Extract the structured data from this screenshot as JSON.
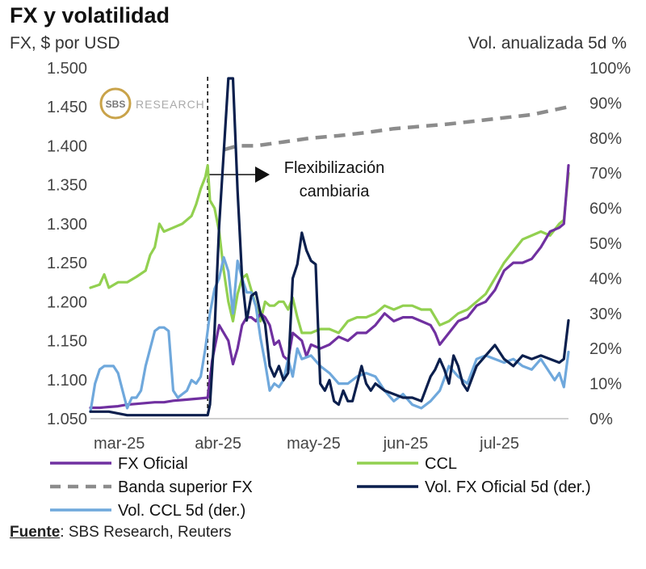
{
  "title": "FX y volatilidad",
  "source_label": "Fuente",
  "source_text": ": SBS Research, Reuters",
  "colors": {
    "fx_oficial": "#7030a0",
    "ccl": "#92d050",
    "banda": "#8c8c8c",
    "vol_fx": "#0b1f4d",
    "vol_ccl": "#6fa8dc",
    "logo_gold": "#c9a34a"
  },
  "logo": {
    "mark": "SBS",
    "text": "RESEARCH"
  },
  "chart_data": {
    "type": "line",
    "title": "FX y volatilidad",
    "ylabel_left": "FX, $ por USD",
    "ylabel_right": "Vol. anualizada 5d %",
    "ylim_left": [
      1050,
      1500
    ],
    "ylim_right": [
      0,
      100
    ],
    "yticks_left": [
      "1.050",
      "1.100",
      "1.150",
      "1.200",
      "1.250",
      "1.300",
      "1.350",
      "1.400",
      "1.450",
      "1.500"
    ],
    "yticks_right": [
      "0%",
      "10%",
      "20%",
      "30%",
      "40%",
      "50%",
      "60%",
      "70%",
      "80%",
      "90%",
      "100%"
    ],
    "x_domain": [
      0,
      104
    ],
    "x_ticks": [
      {
        "label": "mar-25",
        "x": 0
      },
      {
        "label": "abr-25",
        "x": 22
      },
      {
        "label": "may-25",
        "x": 42
      },
      {
        "label": "jun-25",
        "x": 63
      },
      {
        "label": "jul-25",
        "x": 84
      }
    ],
    "event_x": 25.5,
    "annotation": [
      "Flexibilización",
      "cambiaria"
    ],
    "series": [
      {
        "name": "FX Oficial",
        "key": "fx_oficial",
        "axis": "left",
        "dash": false,
        "points": [
          [
            0,
            1064
          ],
          [
            2,
            1064
          ],
          [
            4,
            1065
          ],
          [
            6,
            1066
          ],
          [
            8,
            1068
          ],
          [
            10,
            1069
          ],
          [
            12,
            1070
          ],
          [
            14,
            1071
          ],
          [
            16,
            1071
          ],
          [
            18,
            1073
          ],
          [
            20,
            1074
          ],
          [
            22,
            1075
          ],
          [
            24,
            1076
          ],
          [
            25.5,
            1077
          ],
          [
            26.5,
            1125
          ],
          [
            28,
            1170
          ],
          [
            29,
            1160
          ],
          [
            30,
            1150
          ],
          [
            31,
            1120
          ],
          [
            32,
            1140
          ],
          [
            33,
            1170
          ],
          [
            34,
            1180
          ],
          [
            35,
            1180
          ],
          [
            36,
            1175
          ],
          [
            37,
            1185
          ],
          [
            38,
            1180
          ],
          [
            39,
            1170
          ],
          [
            40,
            1145
          ],
          [
            41,
            1150
          ],
          [
            42,
            1130
          ],
          [
            43,
            1125
          ],
          [
            44,
            1160
          ],
          [
            45,
            1155
          ],
          [
            46,
            1150
          ],
          [
            47,
            1130
          ],
          [
            48,
            1145
          ],
          [
            50,
            1140
          ],
          [
            52,
            1145
          ],
          [
            54,
            1155
          ],
          [
            56,
            1150
          ],
          [
            58,
            1160
          ],
          [
            60,
            1160
          ],
          [
            62,
            1170
          ],
          [
            64,
            1185
          ],
          [
            66,
            1175
          ],
          [
            68,
            1180
          ],
          [
            70,
            1180
          ],
          [
            72,
            1175
          ],
          [
            74,
            1170
          ],
          [
            75,
            1160
          ],
          [
            76,
            1145
          ],
          [
            78,
            1160
          ],
          [
            80,
            1175
          ],
          [
            82,
            1180
          ],
          [
            84,
            1195
          ],
          [
            86,
            1200
          ],
          [
            88,
            1215
          ],
          [
            90,
            1240
          ],
          [
            92,
            1250
          ],
          [
            94,
            1250
          ],
          [
            96,
            1255
          ],
          [
            98,
            1270
          ],
          [
            100,
            1290
          ],
          [
            102,
            1295
          ],
          [
            103,
            1300
          ],
          [
            104,
            1375
          ]
        ]
      },
      {
        "name": "CCL",
        "key": "ccl",
        "axis": "left",
        "dash": false,
        "points": [
          [
            0,
            1218
          ],
          [
            2,
            1222
          ],
          [
            3,
            1235
          ],
          [
            4,
            1218
          ],
          [
            6,
            1225
          ],
          [
            8,
            1225
          ],
          [
            10,
            1232
          ],
          [
            12,
            1240
          ],
          [
            13,
            1260
          ],
          [
            14,
            1270
          ],
          [
            15,
            1300
          ],
          [
            16,
            1290
          ],
          [
            18,
            1295
          ],
          [
            20,
            1300
          ],
          [
            22,
            1310
          ],
          [
            23,
            1325
          ],
          [
            24,
            1345
          ],
          [
            25,
            1360
          ],
          [
            25.5,
            1375
          ],
          [
            26,
            1330
          ],
          [
            27,
            1320
          ],
          [
            28,
            1290
          ],
          [
            29,
            1240
          ],
          [
            30,
            1200
          ],
          [
            31,
            1175
          ],
          [
            32,
            1210
          ],
          [
            33,
            1230
          ],
          [
            34,
            1235
          ],
          [
            35,
            1215
          ],
          [
            36,
            1195
          ],
          [
            37,
            1175
          ],
          [
            38,
            1200
          ],
          [
            39,
            1195
          ],
          [
            40,
            1195
          ],
          [
            41,
            1200
          ],
          [
            42,
            1200
          ],
          [
            43,
            1190
          ],
          [
            44,
            1205
          ],
          [
            45,
            1180
          ],
          [
            46,
            1160
          ],
          [
            48,
            1160
          ],
          [
            50,
            1165
          ],
          [
            52,
            1165
          ],
          [
            54,
            1160
          ],
          [
            56,
            1175
          ],
          [
            58,
            1180
          ],
          [
            60,
            1180
          ],
          [
            62,
            1185
          ],
          [
            64,
            1195
          ],
          [
            66,
            1190
          ],
          [
            68,
            1195
          ],
          [
            70,
            1195
          ],
          [
            72,
            1190
          ],
          [
            74,
            1190
          ],
          [
            75,
            1180
          ],
          [
            76,
            1170
          ],
          [
            78,
            1175
          ],
          [
            80,
            1185
          ],
          [
            82,
            1190
          ],
          [
            84,
            1200
          ],
          [
            86,
            1210
          ],
          [
            88,
            1230
          ],
          [
            90,
            1250
          ],
          [
            92,
            1265
          ],
          [
            94,
            1280
          ],
          [
            96,
            1285
          ],
          [
            98,
            1290
          ],
          [
            100,
            1285
          ],
          [
            102,
            1300
          ],
          [
            103,
            1305
          ],
          [
            104,
            1365
          ]
        ]
      },
      {
        "name": "Banda superior FX",
        "key": "banda",
        "axis": "left",
        "dash": true,
        "points": [
          [
            29,
            1395
          ],
          [
            32,
            1400
          ],
          [
            36,
            1400
          ],
          [
            42,
            1405
          ],
          [
            48,
            1410
          ],
          [
            54,
            1413
          ],
          [
            60,
            1417
          ],
          [
            66,
            1422
          ],
          [
            72,
            1425
          ],
          [
            78,
            1428
          ],
          [
            84,
            1432
          ],
          [
            90,
            1436
          ],
          [
            96,
            1440
          ],
          [
            104,
            1450
          ]
        ]
      },
      {
        "name": "Vol. FX Oficial 5d (der.)",
        "key": "vol_fx",
        "axis": "right",
        "dash": false,
        "points": [
          [
            0,
            2
          ],
          [
            4,
            2
          ],
          [
            8,
            1
          ],
          [
            10,
            1
          ],
          [
            14,
            1
          ],
          [
            18,
            1
          ],
          [
            22,
            1
          ],
          [
            25.5,
            1
          ],
          [
            26,
            4
          ],
          [
            27,
            25
          ],
          [
            28,
            55
          ],
          [
            29,
            76
          ],
          [
            30,
            97
          ],
          [
            31,
            97
          ],
          [
            32,
            65
          ],
          [
            33,
            40
          ],
          [
            34,
            28
          ],
          [
            35,
            35
          ],
          [
            36,
            36
          ],
          [
            37,
            30
          ],
          [
            38,
            27
          ],
          [
            39,
            15
          ],
          [
            40,
            12
          ],
          [
            41,
            15
          ],
          [
            42,
            11
          ],
          [
            43,
            13
          ],
          [
            44,
            40
          ],
          [
            45,
            44
          ],
          [
            46,
            53
          ],
          [
            47,
            48
          ],
          [
            48,
            45
          ],
          [
            49,
            44
          ],
          [
            50,
            10
          ],
          [
            51,
            8
          ],
          [
            52,
            11
          ],
          [
            53,
            5
          ],
          [
            54,
            4
          ],
          [
            55,
            8
          ],
          [
            56,
            5
          ],
          [
            57,
            5
          ],
          [
            58,
            10
          ],
          [
            59,
            15
          ],
          [
            60,
            10
          ],
          [
            61,
            8
          ],
          [
            62,
            10
          ],
          [
            64,
            8
          ],
          [
            66,
            7
          ],
          [
            68,
            6
          ],
          [
            70,
            6
          ],
          [
            72,
            5
          ],
          [
            74,
            12
          ],
          [
            75,
            14
          ],
          [
            76,
            17
          ],
          [
            77,
            14
          ],
          [
            78,
            10
          ],
          [
            79,
            18
          ],
          [
            80,
            15
          ],
          [
            81,
            10
          ],
          [
            82,
            8
          ],
          [
            84,
            15
          ],
          [
            86,
            18
          ],
          [
            88,
            21
          ],
          [
            90,
            17
          ],
          [
            92,
            15
          ],
          [
            94,
            18
          ],
          [
            96,
            17
          ],
          [
            98,
            18
          ],
          [
            100,
            17
          ],
          [
            102,
            16
          ],
          [
            103,
            17
          ],
          [
            104,
            28
          ]
        ]
      },
      {
        "name": "Vol. CCL 5d (der.)",
        "key": "vol_ccl",
        "axis": "right",
        "dash": false,
        "points": [
          [
            0,
            2
          ],
          [
            1,
            10
          ],
          [
            2,
            14
          ],
          [
            3,
            15
          ],
          [
            4,
            15
          ],
          [
            5,
            15
          ],
          [
            6,
            13
          ],
          [
            7,
            8
          ],
          [
            8,
            3
          ],
          [
            9,
            6
          ],
          [
            10,
            6
          ],
          [
            11,
            8
          ],
          [
            12,
            15
          ],
          [
            13,
            20
          ],
          [
            14,
            25
          ],
          [
            15,
            26
          ],
          [
            16,
            26
          ],
          [
            17,
            25
          ],
          [
            18,
            8
          ],
          [
            19,
            6
          ],
          [
            20,
            7
          ],
          [
            21,
            8
          ],
          [
            22,
            11
          ],
          [
            23,
            10
          ],
          [
            24,
            12
          ],
          [
            25,
            20
          ],
          [
            26,
            30
          ],
          [
            27,
            37
          ],
          [
            28,
            40
          ],
          [
            29,
            46
          ],
          [
            30,
            42
          ],
          [
            31,
            30
          ],
          [
            32,
            45
          ],
          [
            33,
            40
          ],
          [
            34,
            36
          ],
          [
            35,
            36
          ],
          [
            36,
            32
          ],
          [
            37,
            23
          ],
          [
            38,
            16
          ],
          [
            39,
            8
          ],
          [
            40,
            10
          ],
          [
            41,
            9
          ],
          [
            42,
            11
          ],
          [
            43,
            17
          ],
          [
            44,
            12
          ],
          [
            45,
            20
          ],
          [
            46,
            17
          ],
          [
            48,
            18
          ],
          [
            50,
            15
          ],
          [
            52,
            13
          ],
          [
            54,
            10
          ],
          [
            56,
            10
          ],
          [
            58,
            12
          ],
          [
            60,
            13
          ],
          [
            62,
            12
          ],
          [
            64,
            8
          ],
          [
            66,
            5
          ],
          [
            68,
            7
          ],
          [
            70,
            4
          ],
          [
            72,
            3
          ],
          [
            74,
            5
          ],
          [
            76,
            8
          ],
          [
            78,
            15
          ],
          [
            80,
            12
          ],
          [
            82,
            10
          ],
          [
            84,
            17
          ],
          [
            86,
            18
          ],
          [
            88,
            17
          ],
          [
            90,
            16
          ],
          [
            92,
            17
          ],
          [
            94,
            15
          ],
          [
            96,
            14
          ],
          [
            98,
            17
          ],
          [
            100,
            13
          ],
          [
            101,
            11
          ],
          [
            102,
            13
          ],
          [
            103,
            9
          ],
          [
            104,
            19
          ]
        ]
      }
    ]
  },
  "legend": [
    {
      "label": "FX Oficial",
      "key": "fx_oficial",
      "dash": false
    },
    {
      "label": "CCL",
      "key": "ccl",
      "dash": false
    },
    {
      "label": "Banda superior FX",
      "key": "banda",
      "dash": true
    },
    {
      "label": "Vol. FX Oficial 5d (der.)",
      "key": "vol_fx",
      "dash": false
    },
    {
      "label": "Vol. CCL 5d (der.)",
      "key": "vol_ccl",
      "dash": false
    }
  ]
}
